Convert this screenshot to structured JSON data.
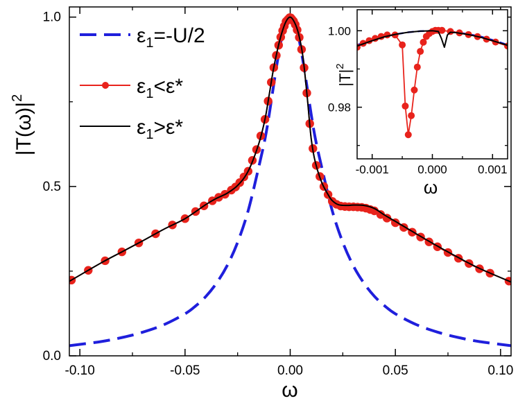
{
  "chart_data": [
    {
      "type": "line",
      "role": "main",
      "xlabel": "ω",
      "ylabel": "|T(ω)|²",
      "ylabel_parts": {
        "base": "|T(ω)|",
        "sup": "2"
      },
      "xlim": [
        -0.105,
        0.105
      ],
      "ylim": [
        0.0,
        1.03
      ],
      "xticks": [
        -0.1,
        -0.05,
        0.0,
        0.05,
        0.1
      ],
      "xtick_labels": [
        "-0.10",
        "-0.05",
        "0.00",
        "0.05",
        "0.10"
      ],
      "yticks": [
        0.0,
        0.5,
        1.0
      ],
      "ytick_labels": [
        "0.0",
        "0.5",
        "1.0"
      ],
      "legend_position": "upper-left",
      "series": [
        {
          "name": "ε1=-U/2",
          "label_parts": {
            "sym": "ε",
            "sub": "1",
            "rest": "=-U/2"
          },
          "style": "dashed",
          "color": "#1f1fdc",
          "x": [
            -0.105,
            -0.09,
            -0.08,
            -0.07,
            -0.06,
            -0.05,
            -0.045,
            -0.04,
            -0.035,
            -0.03,
            -0.025,
            -0.02,
            -0.015,
            -0.012,
            -0.01,
            -0.008,
            -0.006,
            -0.004,
            -0.002,
            0.0,
            0.002,
            0.004,
            0.006,
            0.008,
            0.01,
            0.012,
            0.015,
            0.02,
            0.025,
            0.03,
            0.035,
            0.04,
            0.045,
            0.05,
            0.06,
            0.07,
            0.08,
            0.09,
            0.105
          ],
          "y": [
            0.03,
            0.042,
            0.054,
            0.07,
            0.092,
            0.124,
            0.147,
            0.176,
            0.215,
            0.266,
            0.335,
            0.428,
            0.556,
            0.64,
            0.712,
            0.794,
            0.873,
            0.94,
            0.985,
            1.0,
            0.985,
            0.94,
            0.873,
            0.794,
            0.712,
            0.64,
            0.556,
            0.428,
            0.335,
            0.266,
            0.215,
            0.176,
            0.147,
            0.124,
            0.092,
            0.07,
            0.054,
            0.042,
            0.03
          ]
        },
        {
          "name": "ε1<ε*",
          "label_parts": {
            "sym": "ε",
            "sub": "1",
            "rest": "<ε*"
          },
          "style": "line-markers",
          "color": "#e8231c",
          "x": [
            -0.105,
            -0.09,
            -0.08,
            -0.07,
            -0.06,
            -0.05,
            -0.04,
            -0.035,
            -0.03,
            -0.025,
            -0.02,
            -0.015,
            -0.012,
            -0.01,
            -0.008,
            -0.006,
            -0.004,
            -0.002,
            0.0,
            0.002,
            0.004,
            0.006,
            0.008,
            0.01,
            0.012,
            0.015,
            0.018,
            0.02,
            0.023,
            0.027,
            0.03,
            0.035,
            0.04,
            0.045,
            0.05,
            0.06,
            0.07,
            0.08,
            0.09,
            0.105
          ],
          "y": [
            0.22,
            0.274,
            0.307,
            0.34,
            0.374,
            0.405,
            0.447,
            0.465,
            0.48,
            0.503,
            0.545,
            0.625,
            0.698,
            0.77,
            0.845,
            0.905,
            0.953,
            0.987,
            1.0,
            0.985,
            0.95,
            0.885,
            0.77,
            0.64,
            0.57,
            0.512,
            0.476,
            0.456,
            0.443,
            0.44,
            0.44,
            0.438,
            0.428,
            0.41,
            0.393,
            0.358,
            0.322,
            0.288,
            0.257,
            0.218
          ]
        },
        {
          "name": "ε1>ε*",
          "label_parts": {
            "sym": "ε",
            "sub": "1",
            "rest": ">ε*"
          },
          "style": "solid",
          "color": "#000000",
          "x": [
            -0.105,
            -0.09,
            -0.08,
            -0.07,
            -0.06,
            -0.05,
            -0.04,
            -0.035,
            -0.03,
            -0.025,
            -0.02,
            -0.015,
            -0.012,
            -0.01,
            -0.008,
            -0.006,
            -0.004,
            -0.002,
            0.0,
            0.002,
            0.004,
            0.006,
            0.008,
            0.01,
            0.012,
            0.015,
            0.018,
            0.02,
            0.023,
            0.027,
            0.03,
            0.035,
            0.04,
            0.045,
            0.05,
            0.06,
            0.07,
            0.08,
            0.09,
            0.105
          ],
          "y": [
            0.22,
            0.274,
            0.307,
            0.34,
            0.374,
            0.405,
            0.447,
            0.465,
            0.48,
            0.503,
            0.545,
            0.625,
            0.698,
            0.77,
            0.845,
            0.905,
            0.953,
            0.987,
            1.0,
            0.985,
            0.95,
            0.885,
            0.77,
            0.64,
            0.57,
            0.512,
            0.476,
            0.458,
            0.446,
            0.444,
            0.445,
            0.444,
            0.435,
            0.415,
            0.397,
            0.36,
            0.324,
            0.29,
            0.258,
            0.218
          ]
        }
      ],
      "marker_x": [
        -0.104,
        -0.096,
        -0.088,
        -0.08,
        -0.072,
        -0.064,
        -0.056,
        -0.05,
        -0.045,
        -0.041,
        -0.037,
        -0.034,
        -0.031,
        -0.028,
        -0.026,
        -0.024,
        -0.022,
        -0.02,
        -0.018,
        -0.016,
        -0.014,
        -0.012,
        -0.0105,
        -0.009,
        -0.0078,
        -0.0066,
        -0.0055,
        -0.0045,
        -0.0036,
        -0.0028,
        -0.002,
        -0.0013,
        -0.0007,
        -0.0002,
        0.0003,
        0.0009,
        0.0016,
        0.0024,
        0.0033,
        0.0043,
        0.0054,
        0.0066,
        0.0079,
        0.0093,
        0.0108,
        0.0124,
        0.0141,
        0.016,
        0.018,
        0.02,
        0.022,
        0.024,
        0.026,
        0.028,
        0.03,
        0.032,
        0.034,
        0.036,
        0.038,
        0.04,
        0.043,
        0.046,
        0.05,
        0.054,
        0.058,
        0.062,
        0.066,
        0.07,
        0.075,
        0.08,
        0.085,
        0.09,
        0.095,
        0.104
      ]
    },
    {
      "type": "line",
      "role": "inset",
      "xlabel": "ω",
      "ylabel": "|T|²",
      "ylabel_parts": {
        "base": "|T|",
        "sup": "2"
      },
      "xlim": [
        -0.00125,
        0.00125
      ],
      "ylim": [
        0.9665,
        1.0055
      ],
      "xticks": [
        -0.001,
        0.0,
        0.001
      ],
      "xtick_labels": [
        "-0.001",
        "0.000",
        "0.001"
      ],
      "yticks": [
        0.98,
        1.0
      ],
      "ytick_labels": [
        "0.98",
        "1.00"
      ],
      "series": [
        {
          "name": "ε1=-U/2",
          "style": "dashed",
          "color": "#1f1fdc",
          "x": [
            -0.00125,
            -0.001,
            -0.0008,
            -0.0006,
            -0.0004,
            -0.0002,
            0.0,
            0.0002,
            0.0004,
            0.0006,
            0.0008,
            0.001,
            0.00125
          ],
          "y": [
            0.9963,
            0.9976,
            0.9985,
            0.9991,
            0.9996,
            0.9999,
            1.0,
            0.9999,
            0.9996,
            0.9991,
            0.9985,
            0.9976,
            0.9963
          ]
        },
        {
          "name": "ε1<ε*",
          "style": "line-markers",
          "color": "#e8231c",
          "x": [
            -0.00125,
            -0.00115,
            -0.00105,
            -0.00095,
            -0.00085,
            -0.00075,
            -0.00062,
            -0.0005,
            -0.00045,
            -0.0004,
            -0.00035,
            -0.0003,
            -0.00025,
            -0.0002,
            -0.00015,
            -0.0001,
            -5e-05,
            0.0,
            5e-05,
            0.0001,
            0.00016,
            0.00025,
            0.0004,
            0.0006,
            0.0008,
            0.001,
            0.00125
          ],
          "y": [
            0.9957,
            0.9967,
            0.9974,
            0.998,
            0.9985,
            0.9989,
            0.9989,
            0.9963,
            0.9803,
            0.9728,
            0.9778,
            0.9845,
            0.9905,
            0.9946,
            0.997,
            0.9985,
            0.9993,
            0.9998,
            1.0001,
            1.0001,
            1.0001,
            0.9999,
            0.9996,
            0.999,
            0.9983,
            0.9973,
            0.996
          ]
        },
        {
          "name": "ε1>ε*",
          "style": "solid",
          "color": "#000000",
          "x": [
            -0.00125,
            -0.001,
            -0.0008,
            -0.0006,
            -0.0004,
            -0.0002,
            0.0,
            0.0001,
            0.00015,
            0.0002,
            0.00025,
            0.0003,
            0.0004,
            0.0006,
            0.0008,
            0.001,
            0.00125
          ],
          "y": [
            0.996,
            0.9974,
            0.9984,
            0.9991,
            0.9996,
            0.9999,
            1.0,
            0.9998,
            0.998,
            0.9957,
            0.9989,
            0.9996,
            0.9995,
            0.999,
            0.9983,
            0.9974,
            0.9962
          ]
        }
      ],
      "marker_x": [
        -0.00125,
        -0.00115,
        -0.00105,
        -0.00095,
        -0.00085,
        -0.00075,
        -0.00062,
        -0.0005,
        -0.00045,
        -0.0004,
        -0.00035,
        -0.0003,
        -0.00025,
        -0.0002,
        -0.00015,
        -0.0001,
        -5e-05,
        0.0,
        5e-05,
        0.0001,
        0.00016,
        0.0003,
        0.00045,
        0.0006,
        0.00075,
        0.0009,
        0.00105,
        0.00125
      ]
    }
  ]
}
